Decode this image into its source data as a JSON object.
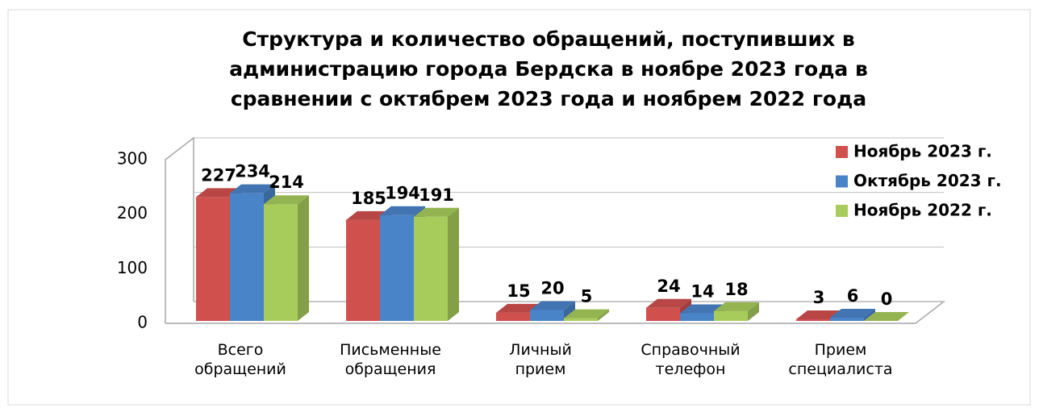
{
  "chart_data": {
    "type": "bar3d",
    "title": "Структура и количество обращений, поступивших в администрацию города Бердска в ноябре 2023 года в сравнении с октябрем 2023 года и ноябрем 2022 года",
    "categories": [
      "Всего обращений",
      "Письменные обращения",
      "Личный прием",
      "Справочный телефон",
      "Прием специалиста"
    ],
    "series": [
      {
        "name": "Ноябрь 2023 г.",
        "color": "#d0504e",
        "values": [
          227,
          185,
          15,
          24,
          3
        ]
      },
      {
        "name": "Октябрь 2023 г.",
        "color": "#4a84c8",
        "values": [
          234,
          194,
          20,
          14,
          6
        ]
      },
      {
        "name": "Ноябрь 2022 г.",
        "color": "#a8cc5c",
        "values": [
          214,
          191,
          5,
          18,
          0
        ]
      }
    ],
    "ylim": [
      0,
      300
    ],
    "yticks": [
      0,
      100,
      200,
      300
    ],
    "grid": true,
    "legend": "top-right"
  }
}
